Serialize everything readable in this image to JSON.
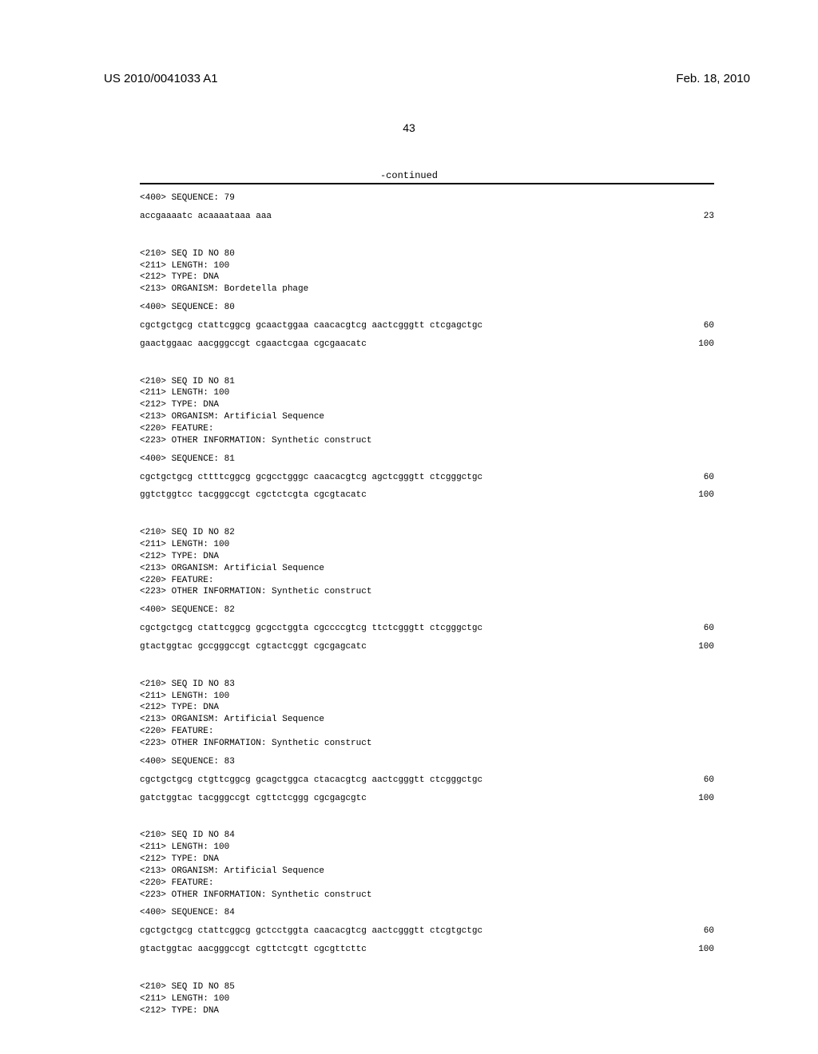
{
  "header": {
    "pub_number": "US 2010/0041033 A1",
    "pub_date": "Feb. 18, 2010"
  },
  "page_number": "43",
  "continued_label": "-continued",
  "sequences": [
    {
      "headers": [
        "<400> SEQUENCE: 79"
      ],
      "lines": [
        {
          "text": "accgaaaatc acaaaataaa aaa",
          "pos": "23"
        }
      ]
    },
    {
      "headers": [
        "<210> SEQ ID NO 80",
        "<211> LENGTH: 100",
        "<212> TYPE: DNA",
        "<213> ORGANISM: Bordetella phage"
      ],
      "seq_label": "<400> SEQUENCE: 80",
      "lines": [
        {
          "text": "cgctgctgcg ctattcggcg gcaactggaa caacacgtcg aactcgggtt ctcgagctgc",
          "pos": "60"
        },
        {
          "text": "gaactggaac aacgggccgt cgaactcgaa cgcgaacatc",
          "pos": "100"
        }
      ]
    },
    {
      "headers": [
        "<210> SEQ ID NO 81",
        "<211> LENGTH: 100",
        "<212> TYPE: DNA",
        "<213> ORGANISM: Artificial Sequence",
        "<220> FEATURE:",
        "<223> OTHER INFORMATION: Synthetic construct"
      ],
      "seq_label": "<400> SEQUENCE: 81",
      "lines": [
        {
          "text": "cgctgctgcg cttttcggcg gcgcctgggc caacacgtcg agctcgggtt ctcgggctgc",
          "pos": "60"
        },
        {
          "text": "ggtctggtcc tacgggccgt cgctctcgta cgcgtacatc",
          "pos": "100"
        }
      ]
    },
    {
      "headers": [
        "<210> SEQ ID NO 82",
        "<211> LENGTH: 100",
        "<212> TYPE: DNA",
        "<213> ORGANISM: Artificial Sequence",
        "<220> FEATURE:",
        "<223> OTHER INFORMATION: Synthetic construct"
      ],
      "seq_label": "<400> SEQUENCE: 82",
      "lines": [
        {
          "text": "cgctgctgcg ctattcggcg gcgcctggta cgccccgtcg ttctcgggtt ctcgggctgc",
          "pos": "60"
        },
        {
          "text": "gtactggtac gccgggccgt cgtactcggt cgcgagcatc",
          "pos": "100"
        }
      ]
    },
    {
      "headers": [
        "<210> SEQ ID NO 83",
        "<211> LENGTH: 100",
        "<212> TYPE: DNA",
        "<213> ORGANISM: Artificial Sequence",
        "<220> FEATURE:",
        "<223> OTHER INFORMATION: Synthetic construct"
      ],
      "seq_label": "<400> SEQUENCE: 83",
      "lines": [
        {
          "text": "cgctgctgcg ctgttcggcg gcagctggca ctacacgtcg aactcgggtt ctcgggctgc",
          "pos": "60"
        },
        {
          "text": "gatctggtac tacgggccgt cgttctcggg cgcgagcgtc",
          "pos": "100"
        }
      ]
    },
    {
      "headers": [
        "<210> SEQ ID NO 84",
        "<211> LENGTH: 100",
        "<212> TYPE: DNA",
        "<213> ORGANISM: Artificial Sequence",
        "<220> FEATURE:",
        "<223> OTHER INFORMATION: Synthetic construct"
      ],
      "seq_label": "<400> SEQUENCE: 84",
      "lines": [
        {
          "text": "cgctgctgcg ctattcggcg gctcctggta caacacgtcg aactcgggtt ctcgtgctgc",
          "pos": "60"
        },
        {
          "text": "gtactggtac aacgggccgt cgttctcgtt cgcgttcttc",
          "pos": "100"
        }
      ]
    },
    {
      "headers": [
        "<210> SEQ ID NO 85",
        "<211> LENGTH: 100",
        "<212> TYPE: DNA"
      ],
      "lines": []
    }
  ]
}
